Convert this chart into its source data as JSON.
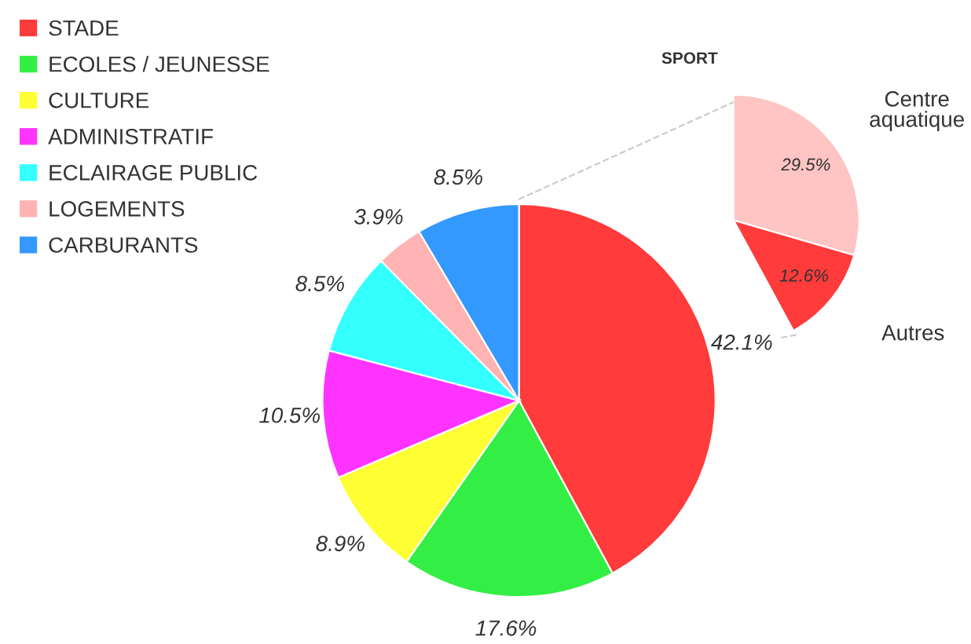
{
  "chart_data": [
    {
      "type": "pie",
      "categories": [
        "STADE",
        "ECOLES / JEUNESSE",
        "CULTURE",
        "ADMINISTRATIF",
        "ECLAIRAGE PUBLIC",
        "LOGEMENTS",
        "CARBURANTS"
      ],
      "values": [
        42.1,
        17.6,
        8.9,
        10.5,
        8.5,
        3.9,
        8.5
      ],
      "value_labels": [
        "42.1%",
        "17.6%",
        "8.9%",
        "10.5%",
        "8.5%",
        "3.9%",
        "8.5%"
      ],
      "colors": [
        "#ff3b3b",
        "#33ee44",
        "#ffff33",
        "#ff33ff",
        "#33ffff",
        "#ffb3b3",
        "#3399ff"
      ],
      "legend": "top left"
    },
    {
      "type": "pie",
      "title": "SPORT",
      "categories": [
        "Centre aquatique",
        "Autres"
      ],
      "values": [
        29.5,
        12.6
      ],
      "value_labels": [
        "29.5%",
        "12.6%"
      ],
      "colors": [
        "#ffc4c4",
        "#ff3b3b"
      ]
    }
  ]
}
